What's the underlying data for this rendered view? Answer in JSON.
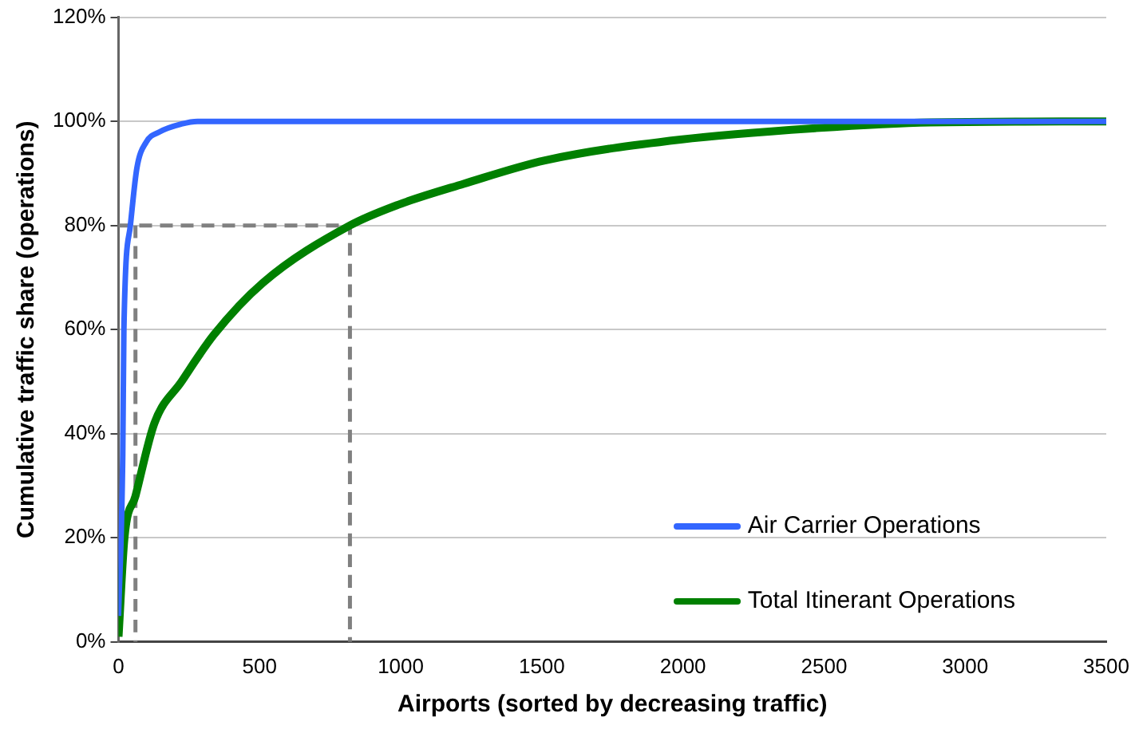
{
  "chart_data": {
    "type": "line",
    "xlabel": "Airports (sorted by decreasing traffic)",
    "ylabel": "Cumulative traffic share (operations)",
    "xlim": [
      0,
      3500
    ],
    "xticks": [
      0,
      500,
      1000,
      1500,
      2000,
      2500,
      3000,
      3500
    ],
    "ylim": [
      0,
      120
    ],
    "yticks": [
      {
        "value": 0,
        "label": "0%"
      },
      {
        "value": 20,
        "label": "20%"
      },
      {
        "value": 40,
        "label": "40%"
      },
      {
        "value": 60,
        "label": "60%"
      },
      {
        "value": 80,
        "label": "80%"
      },
      {
        "value": 100,
        "label": "100%"
      },
      {
        "value": 120,
        "label": "120%"
      }
    ],
    "grid": "y",
    "legend": "bottom right",
    "marker": "none",
    "line_style": "solid",
    "series": [
      {
        "name": "Air Carrier Operations",
        "color": "#3366ff",
        "x": [
          0,
          15,
          19,
          42,
          65,
          98,
          146,
          223,
          280,
          1000,
          2000,
          3000,
          3500
        ],
        "values": [
          5,
          36,
          60,
          80,
          91,
          96,
          98,
          99.5,
          100,
          100,
          100,
          100,
          100
        ]
      },
      {
        "name": "Total Itinerant Operations",
        "color": "#008000",
        "x": [
          0,
          21,
          60,
          127,
          223,
          338,
          512,
          820,
          992,
          1223,
          1511,
          1991,
          2472,
          2876,
          3500
        ],
        "values": [
          1,
          20,
          28,
          42,
          50,
          59,
          69,
          80,
          84,
          88,
          92.5,
          96.5,
          98.7,
          99.8,
          100
        ]
      },
      {
        "color": "#808080",
        "line_style": "dashed",
        "x": [
          0,
          820,
          820
        ],
        "values": [
          80,
          80,
          0
        ]
      },
      {
        "color": "#808080",
        "line_style": "dashed",
        "x": [
          60,
          60
        ],
        "values": [
          80,
          0
        ]
      }
    ]
  }
}
